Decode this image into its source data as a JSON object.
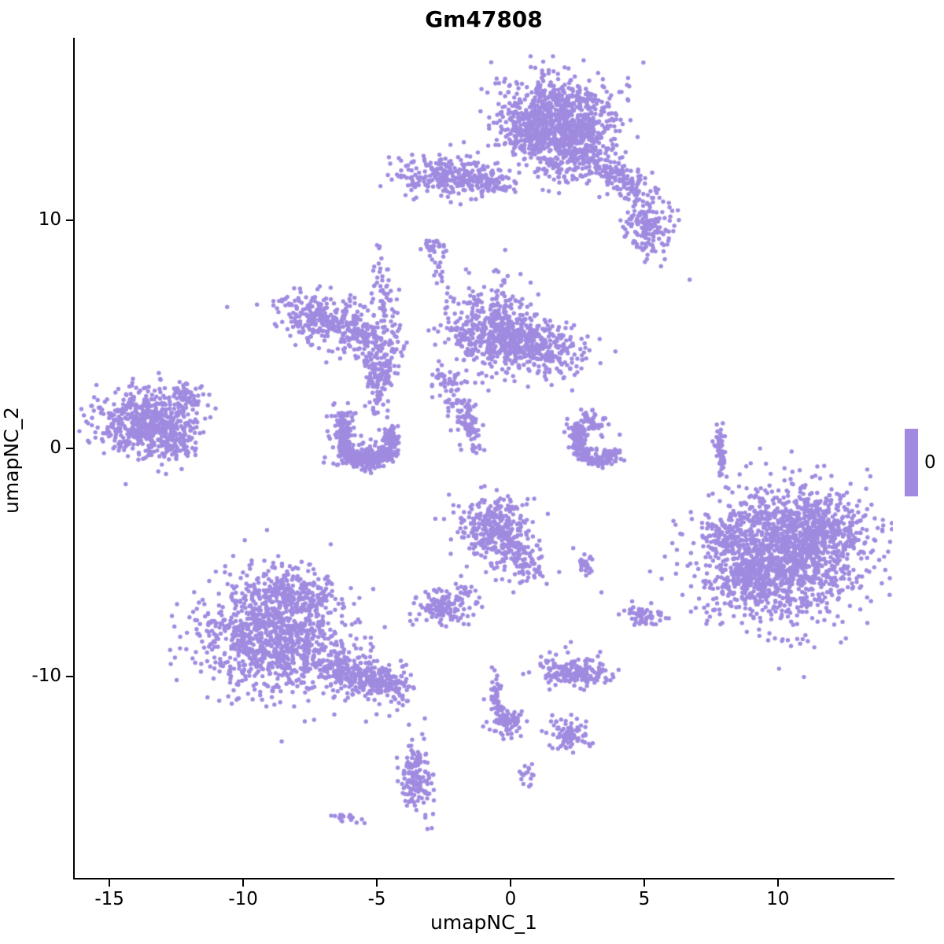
{
  "title": "Gm47808",
  "chart_data": {
    "type": "scatter",
    "subtype": "umap-feature-plot",
    "xlabel": "umapNC_1",
    "ylabel": "umapNC_2",
    "xlim": [
      -16.3,
      14.3
    ],
    "ylim": [
      -18.85,
      18.0
    ],
    "x_ticks": [
      -15,
      -10,
      -5,
      0,
      5,
      10
    ],
    "y_ticks": [
      -10,
      0,
      10
    ],
    "grid": false,
    "point_color": "#A08BE0",
    "point_radius": 2.7,
    "legend": {
      "label": "0",
      "color": "#A08BE0",
      "position": "right"
    },
    "clusters": [
      {
        "cx": 1.8,
        "cy": 14.4,
        "sx": 1.15,
        "sy": 0.95,
        "rot": -15,
        "n": 850
      },
      {
        "cx": 1.0,
        "cy": 13.6,
        "sx": 0.5,
        "sy": 0.5,
        "rot": 0,
        "n": 120
      },
      {
        "cx": 2.6,
        "cy": 13.3,
        "sx": 0.5,
        "sy": 0.45,
        "rot": -30,
        "n": 120
      },
      {
        "cx": 4.0,
        "cy": 11.9,
        "sx": 0.95,
        "sy": 0.35,
        "rot": -38,
        "n": 170
      },
      {
        "cx": 5.15,
        "cy": 9.7,
        "sx": 0.42,
        "sy": 0.62,
        "rot": 10,
        "n": 150
      },
      {
        "cx": 1.9,
        "cy": 12.2,
        "sx": 0.55,
        "sy": 0.45,
        "rot": 0,
        "n": 60
      },
      {
        "cx": -2.3,
        "cy": 11.9,
        "sx": 1.15,
        "sy": 0.42,
        "rot": -4,
        "n": 280
      },
      {
        "cx": -0.6,
        "cy": 11.55,
        "sx": 0.45,
        "sy": 0.2,
        "rot": 0,
        "n": 45
      },
      {
        "cx": -2.9,
        "cy": 8.85,
        "sx": 0.3,
        "sy": 0.18,
        "rot": 0,
        "n": 30
      },
      {
        "cx": -6.9,
        "cy": 5.6,
        "sx": 0.95,
        "sy": 0.6,
        "rot": -18,
        "n": 300
      },
      {
        "cx": -5.2,
        "cy": 4.7,
        "sx": 0.75,
        "sy": 0.4,
        "rot": -28,
        "n": 110
      },
      {
        "cx": -4.85,
        "cy": 3.4,
        "sx": 0.32,
        "sy": 0.32,
        "rot": 0,
        "n": 70
      },
      {
        "cx": -4.65,
        "cy": 6.6,
        "sx": 0.2,
        "sy": 1.0,
        "rot": 8,
        "n": 60
      },
      {
        "cx": -4.95,
        "cy": 2.5,
        "sx": 0.22,
        "sy": 0.7,
        "rot": -10,
        "n": 60
      },
      {
        "cx": -0.9,
        "cy": 5.3,
        "sx": 0.8,
        "sy": 0.95,
        "rot": 0,
        "n": 380
      },
      {
        "cx": 1.1,
        "cy": 4.4,
        "sx": 0.95,
        "sy": 0.6,
        "rot": -10,
        "n": 300
      },
      {
        "cx": 0.1,
        "cy": 4.8,
        "sx": 0.55,
        "sy": 0.55,
        "rot": 0,
        "n": 120
      },
      {
        "cx": -1.8,
        "cy": 1.6,
        "sx": 0.3,
        "sy": 0.8,
        "rot": 18,
        "n": 70
      },
      {
        "cx": -2.4,
        "cy": 2.9,
        "sx": 0.35,
        "sy": 0.35,
        "rot": 0,
        "n": 30
      },
      {
        "cx": -13.5,
        "cy": 1.1,
        "sx": 0.95,
        "sy": 0.7,
        "rot": -12,
        "n": 600
      },
      {
        "cx": -12.1,
        "cy": 2.3,
        "sx": 0.4,
        "sy": 0.3,
        "rot": -20,
        "n": 60
      },
      {
        "cx": -12.6,
        "cy": -0.1,
        "sx": 0.4,
        "sy": 0.25,
        "rot": 0,
        "n": 40
      },
      {
        "cx": -5.4,
        "cy": -0.35,
        "sx": 0.55,
        "sy": 0.28,
        "rot": 0,
        "n": 140
      },
      {
        "cx": -6.35,
        "cy": 1.3,
        "sx": 0.3,
        "sy": 0.35,
        "rot": 0,
        "n": 50
      },
      {
        "cx": -1.5,
        "cy": 1.05,
        "sx": 0.13,
        "sy": 0.55,
        "rot": 12,
        "n": 45
      },
      {
        "cx": 2.85,
        "cy": 1.1,
        "sx": 0.45,
        "sy": 0.3,
        "rot": 0,
        "n": 60
      },
      {
        "cx": 7.85,
        "cy": 0.1,
        "sx": 0.09,
        "sy": 0.7,
        "rot": 4,
        "n": 60
      },
      {
        "cx": 10.3,
        "cy": -4.7,
        "sx": 1.55,
        "sy": 1.45,
        "rot": 0,
        "n": 1300
      },
      {
        "cx": 9.0,
        "cy": -5.6,
        "sx": 0.7,
        "sy": 0.75,
        "rot": 0,
        "n": 230
      },
      {
        "cx": 11.6,
        "cy": -3.6,
        "sx": 0.75,
        "sy": 0.65,
        "rot": 0,
        "n": 230
      },
      {
        "cx": 10.4,
        "cy": -2.7,
        "sx": 1.1,
        "sy": 0.45,
        "rot": 0,
        "n": 130
      },
      {
        "cx": 7.95,
        "cy": -3.9,
        "sx": 0.3,
        "sy": 0.45,
        "rot": 0,
        "n": 60
      },
      {
        "cx": -0.5,
        "cy": -3.6,
        "sx": 0.7,
        "sy": 0.85,
        "rot": 0,
        "n": 330
      },
      {
        "cx": 0.5,
        "cy": -5.0,
        "sx": 0.45,
        "sy": 0.45,
        "rot": -35,
        "n": 90
      },
      {
        "cx": 2.75,
        "cy": -5.2,
        "sx": 0.18,
        "sy": 0.28,
        "rot": 0,
        "n": 25
      },
      {
        "cx": -2.5,
        "cy": -7.0,
        "sx": 0.55,
        "sy": 0.42,
        "rot": -10,
        "n": 130
      },
      {
        "cx": -1.75,
        "cy": -6.15,
        "sx": 0.15,
        "sy": 0.15,
        "rot": 0,
        "n": 14
      },
      {
        "cx": 5.05,
        "cy": -7.35,
        "sx": 0.38,
        "sy": 0.25,
        "rot": -15,
        "n": 55
      },
      {
        "cx": -8.8,
        "cy": -8.3,
        "sx": 1.35,
        "sy": 1.25,
        "rot": 0,
        "n": 1050
      },
      {
        "cx": -8.3,
        "cy": -6.3,
        "sx": 0.85,
        "sy": 0.55,
        "rot": 0,
        "n": 190
      },
      {
        "cx": -5.8,
        "cy": -9.9,
        "sx": 1.05,
        "sy": 0.45,
        "rot": -17,
        "n": 260
      },
      {
        "cx": -4.6,
        "cy": -10.3,
        "sx": 0.4,
        "sy": 0.35,
        "rot": -15,
        "n": 90
      },
      {
        "cx": 2.4,
        "cy": -9.8,
        "sx": 0.72,
        "sy": 0.33,
        "rot": -4,
        "n": 170
      },
      {
        "cx": -0.45,
        "cy": -11.2,
        "sx": 0.16,
        "sy": 0.65,
        "rot": 10,
        "n": 60
      },
      {
        "cx": -0.1,
        "cy": -12.0,
        "sx": 0.3,
        "sy": 0.28,
        "rot": 0,
        "n": 60
      },
      {
        "cx": 2.2,
        "cy": -12.6,
        "sx": 0.42,
        "sy": 0.32,
        "rot": -28,
        "n": 80
      },
      {
        "cx": -3.55,
        "cy": -14.4,
        "sx": 0.28,
        "sy": 0.75,
        "rot": 6,
        "n": 150
      },
      {
        "cx": 0.6,
        "cy": -14.3,
        "sx": 0.16,
        "sy": 0.24,
        "rot": 0,
        "n": 16
      },
      {
        "cx": -6.1,
        "cy": -16.2,
        "sx": 0.32,
        "sy": 0.1,
        "rot": -8,
        "n": 20
      },
      {
        "cx": -2.6,
        "cy": 7.9,
        "sx": 0.12,
        "sy": 0.3,
        "rot": 0,
        "n": 14
      }
    ],
    "arcs": [
      {
        "cx": -5.35,
        "cy": 0.45,
        "r": 0.95,
        "a0": 150,
        "a1": 390,
        "jr": 0.16,
        "n": 360
      },
      {
        "cx": 3.3,
        "cy": 0.4,
        "r": 0.85,
        "a0": 140,
        "a1": 330,
        "jr": 0.15,
        "n": 220
      }
    ],
    "singles": [
      [
        6.7,
        7.4
      ],
      [
        -10.6,
        6.2
      ],
      [
        -3.8,
        -12.1
      ],
      [
        -0.2,
        8.7
      ],
      [
        5.1,
        8.3
      ],
      [
        -12.3,
        -0.9
      ],
      [
        3.4,
        -6.3
      ],
      [
        1.2,
        -5.6
      ]
    ]
  }
}
